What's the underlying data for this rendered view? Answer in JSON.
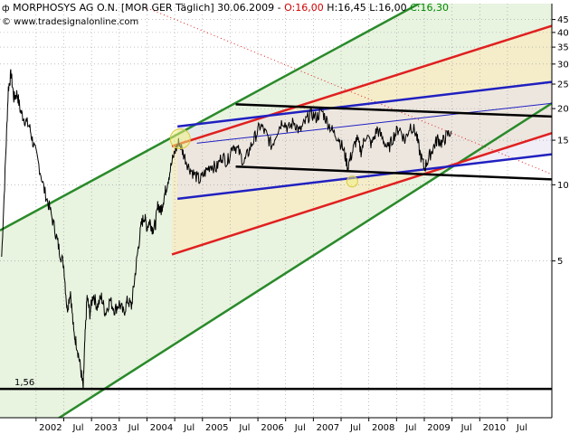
{
  "header": {
    "symbol_icon": "candlestick-icon",
    "title": "MORPHOSYS AG O.N. [MOR GER  Täglich]",
    "date": "30.06.2009",
    "open": "O:16,00",
    "high_low": "H:16,45 L:16,00",
    "close": "C:16,30",
    "website": "© www.tradesignalonline.com"
  },
  "colors": {
    "price": "#000000",
    "green_channel": "#2a8a2a",
    "red_channel": "#e02020",
    "blue_channel": "#2020c0",
    "black_channel": "#000000",
    "green_fill": "#e8f3e0",
    "yellow_fill": "#f5ecc8",
    "highlight_circle": "#f0f080"
  },
  "chart_data": {
    "type": "line",
    "title": "",
    "y_scale": "log",
    "ylim": [
      1.2,
      52
    ],
    "xlim": [
      2001.35,
      2011.3
    ],
    "grid": true,
    "y_ticks": [
      5,
      10,
      15,
      20,
      25,
      30,
      35,
      40,
      45
    ],
    "x_ticks": [
      {
        "label": "2002",
        "x": 2002.0
      },
      {
        "label": "Jul",
        "x": 2002.5
      },
      {
        "label": "2003",
        "x": 2003.0
      },
      {
        "label": "Jul",
        "x": 2003.5
      },
      {
        "label": "2004",
        "x": 2004.0
      },
      {
        "label": "Jul",
        "x": 2004.5
      },
      {
        "label": "2005",
        "x": 2005.0
      },
      {
        "label": "Jul",
        "x": 2005.5
      },
      {
        "label": "2006",
        "x": 2006.0
      },
      {
        "label": "Jul",
        "x": 2006.5
      },
      {
        "label": "2007",
        "x": 2007.0
      },
      {
        "label": "Jul",
        "x": 2007.5
      },
      {
        "label": "2008",
        "x": 2008.0
      },
      {
        "label": "Jul",
        "x": 2008.5
      },
      {
        "label": "2009",
        "x": 2009.0
      },
      {
        "label": "Jul",
        "x": 2009.5
      },
      {
        "label": "2010",
        "x": 2010.0
      },
      {
        "label": "Jul",
        "x": 2010.5
      }
    ],
    "support_level": {
      "value": 1.56,
      "label": "1,56"
    },
    "price_series": {
      "x": [
        2001.38,
        2001.45,
        2001.5,
        2001.55,
        2001.6,
        2001.66,
        2001.72,
        2001.8,
        2001.88,
        2001.95,
        2002.05,
        2002.15,
        2002.25,
        2002.35,
        2002.42,
        2002.5,
        2002.56,
        2002.62,
        2002.68,
        2002.74,
        2002.8,
        2002.85,
        2002.88,
        2002.92,
        2002.97,
        2003.03,
        2003.1,
        2003.18,
        2003.25,
        2003.33,
        2003.42,
        2003.5,
        2003.58,
        2003.65,
        2003.72,
        2003.78,
        2003.84,
        2003.9,
        2003.95,
        2004.0,
        2004.05,
        2004.1,
        2004.15,
        2004.2,
        2004.25,
        2004.3,
        2004.35,
        2004.42,
        2004.5,
        2004.58,
        2004.66,
        2004.75,
        2004.85,
        2004.95,
        2005.05,
        2005.15,
        2005.25,
        2005.35,
        2005.45,
        2005.55,
        2005.65,
        2005.75,
        2005.85,
        2005.95,
        2006.05,
        2006.15,
        2006.25,
        2006.35,
        2006.45,
        2006.55,
        2006.65,
        2006.75,
        2006.85,
        2006.95,
        2007.05,
        2007.15,
        2007.25,
        2007.35,
        2007.45,
        2007.55,
        2007.62,
        2007.7,
        2007.78,
        2007.86,
        2007.95,
        2008.05,
        2008.15,
        2008.25,
        2008.35,
        2008.45,
        2008.55,
        2008.65,
        2008.75,
        2008.85,
        2008.92,
        2009.0,
        2009.08,
        2009.16,
        2009.24,
        2009.32,
        2009.4,
        2009.49
      ],
      "y": [
        5.2,
        12.5,
        24.0,
        27.5,
        22.0,
        23.0,
        19.5,
        18.0,
        17.0,
        14.5,
        12.0,
        9.5,
        8.0,
        6.5,
        5.5,
        4.8,
        3.2,
        3.8,
        2.6,
        2.3,
        1.9,
        1.56,
        2.4,
        3.6,
        3.1,
        3.7,
        3.3,
        3.6,
        3.1,
        3.5,
        3.2,
        3.4,
        3.1,
        3.5,
        3.3,
        4.3,
        5.6,
        7.0,
        7.5,
        6.8,
        7.2,
        6.7,
        6.9,
        8.4,
        7.8,
        8.8,
        9.8,
        11.5,
        13.5,
        14.8,
        13.2,
        11.8,
        11.0,
        10.4,
        11.2,
        12.0,
        11.6,
        13.0,
        12.3,
        14.5,
        13.6,
        12.2,
        13.8,
        15.5,
        17.2,
        15.8,
        14.2,
        16.4,
        18.0,
        16.6,
        17.8,
        16.2,
        17.6,
        19.2,
        18.4,
        19.6,
        17.8,
        16.2,
        15.4,
        13.6,
        11.8,
        13.4,
        15.2,
        13.6,
        15.8,
        14.4,
        16.6,
        15.2,
        13.8,
        15.6,
        16.8,
        15.0,
        17.2,
        16.0,
        13.4,
        11.6,
        12.8,
        14.0,
        15.2,
        14.6,
        15.6,
        16.3
      ]
    },
    "trend_channels": [
      {
        "name": "green-upper",
        "color": "green",
        "points": [
          [
            2001.35,
            6.6
          ],
          [
            2011.3,
            100
          ]
        ]
      },
      {
        "name": "green-lower",
        "color": "green",
        "points": [
          [
            2001.35,
            0.85
          ],
          [
            2011.3,
            21
          ]
        ]
      },
      {
        "name": "red-upper",
        "color": "red",
        "points": [
          [
            2004.45,
            14.2
          ],
          [
            2011.3,
            42.5
          ]
        ]
      },
      {
        "name": "red-lower",
        "color": "red",
        "points": [
          [
            2004.45,
            5.3
          ],
          [
            2011.3,
            16.0
          ]
        ]
      },
      {
        "name": "blue-upper",
        "color": "blue",
        "points": [
          [
            2004.55,
            17.0
          ],
          [
            2011.3,
            25.5
          ]
        ]
      },
      {
        "name": "blue-lower",
        "color": "blue",
        "points": [
          [
            2004.55,
            8.8
          ],
          [
            2011.3,
            13.2
          ]
        ]
      },
      {
        "name": "blue-thin",
        "color": "blue",
        "points": [
          [
            2004.9,
            14.6
          ],
          [
            2011.3,
            21.0
          ]
        ]
      },
      {
        "name": "black-upper",
        "color": "black",
        "points": [
          [
            2005.6,
            20.8
          ],
          [
            2011.3,
            18.6
          ]
        ]
      },
      {
        "name": "black-lower",
        "color": "black",
        "points": [
          [
            2005.6,
            11.8
          ],
          [
            2011.3,
            10.5
          ]
        ]
      }
    ],
    "dotted_line": {
      "color": "red",
      "points": [
        [
          2004.0,
          50
        ],
        [
          2011.3,
          11.0
        ]
      ]
    },
    "highlight_circles": [
      {
        "x": 2004.6,
        "y": 15.2
      },
      {
        "x": 2007.7,
        "y": 10.3
      }
    ]
  }
}
